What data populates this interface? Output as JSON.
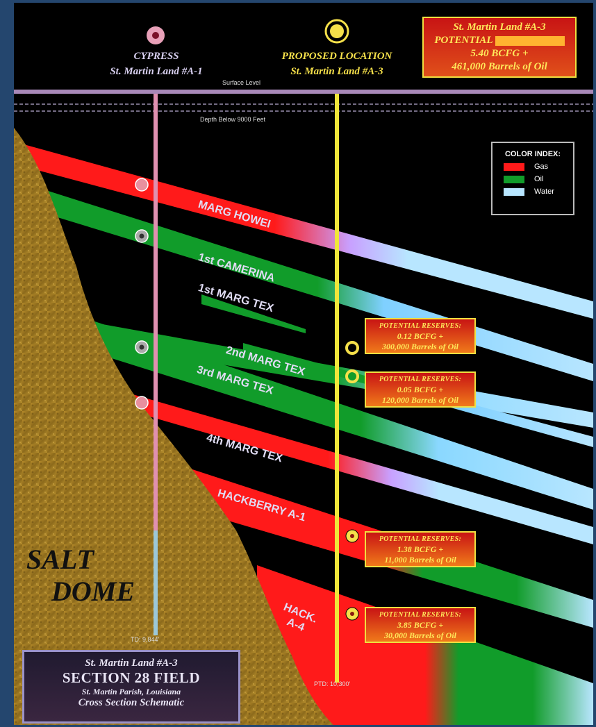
{
  "wells": {
    "left": {
      "name": "CYPRESS",
      "sub": "St. Martin Land #A-1",
      "td": "TD: 9,844'"
    },
    "proposed": {
      "name": "PROPOSED LOCATION",
      "sub": "St. Martin Land #A-3",
      "ptd": "PTD: 10,300'"
    }
  },
  "surface_label": "Surface Level",
  "depth_label": "Depth Below 9000 Feet",
  "potential_top": {
    "line1": "St. Martin Land #A-3",
    "line2": "POTENTIAL",
    "line3": "5.40 BCFG +",
    "line4": "461,000 Barrels of Oil"
  },
  "legend": {
    "title": "COLOR INDEX:",
    "items": [
      {
        "label": "Gas",
        "color": "#ff1a1a"
      },
      {
        "label": "Oil",
        "color": "#119c2a"
      },
      {
        "label": "Water",
        "color": "#b8e6ff"
      }
    ]
  },
  "layers": {
    "marg_howei": "MARG HOWEI",
    "camerina": "1st CAMERINA",
    "marg_tex_1": "1st MARG TEX",
    "marg_tex_2": "2nd MARG TEX",
    "marg_tex_3": "3rd MARG TEX",
    "marg_tex_4": "4th MARG TEX",
    "hackberry": "HACKBERRY A-1",
    "hack_a4_1": "HACK.",
    "hack_a4_2": "A-4"
  },
  "reserves": [
    {
      "heading": "POTENTIAL RESERVES:",
      "gas": "0.12 BCFG +",
      "oil": "300,000 Barrels of Oil"
    },
    {
      "heading": "POTENTIAL RESERVES:",
      "gas": "0.05 BCFG +",
      "oil": "120,000 Barrels of Oil"
    },
    {
      "heading": "POTENTIAL RESERVES:",
      "gas": "1.38 BCFG +",
      "oil": "11,000 Barrels of Oil"
    },
    {
      "heading": "POTENTIAL RESERVES:",
      "gas": "3.85 BCFG +",
      "oil": "30,000 Barrels of Oil"
    }
  ],
  "salt_dome": {
    "line1": "SALT",
    "line2": "DOME"
  },
  "title_box": {
    "line1": "St. Martin Land #A-3",
    "line2": "SECTION 28 FIELD",
    "line3": "St. Martin Parish, Louisiana",
    "line4": "Cross Section Schematic"
  }
}
